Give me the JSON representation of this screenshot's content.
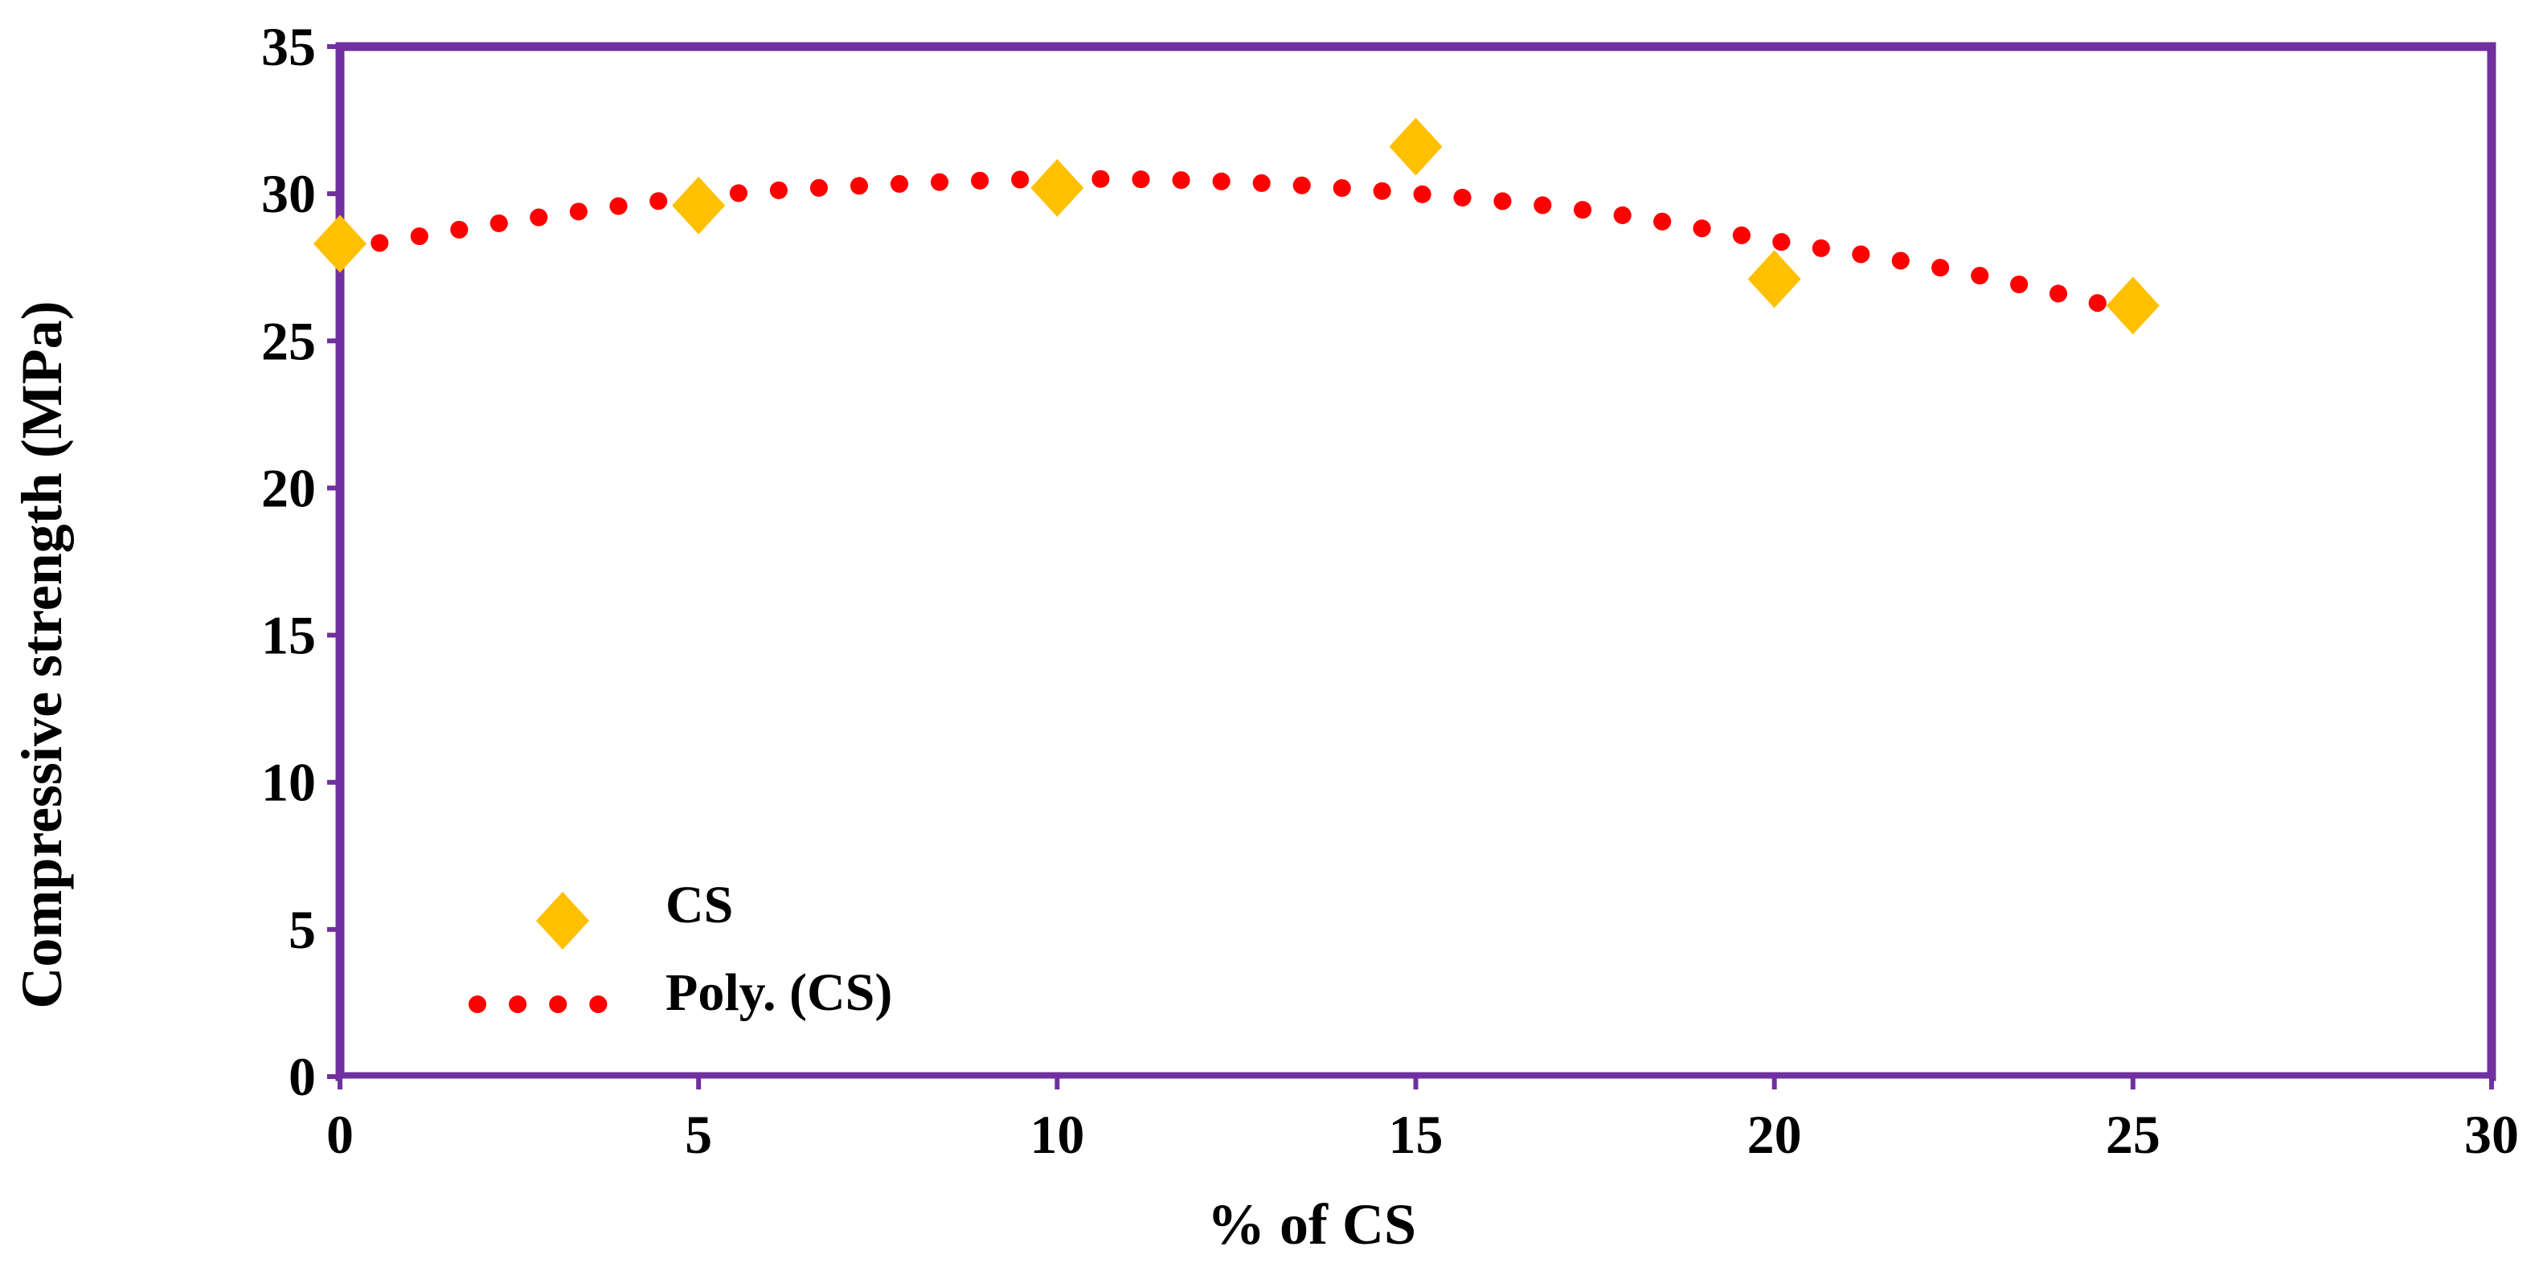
{
  "chart_data": {
    "type": "scatter",
    "title": "",
    "xlabel": "% of CS",
    "ylabel": "Compressive strength (MPa)",
    "xlim": [
      0,
      30
    ],
    "ylim": [
      0,
      35
    ],
    "xticks": [
      0,
      5,
      10,
      15,
      20,
      25,
      30
    ],
    "yticks": [
      0,
      5,
      10,
      15,
      20,
      25,
      30,
      35
    ],
    "xtick_labels": [
      "0",
      "5",
      "10",
      "15",
      "20",
      "25",
      "30"
    ],
    "ytick_labels": [
      "0",
      "5",
      "10",
      "15",
      "20",
      "25",
      "30",
      "35"
    ],
    "grid": false,
    "legend_position": "bottom-left",
    "series": [
      {
        "name": "CS",
        "kind": "markers",
        "marker": "diamond",
        "color": "#FFC000",
        "x": [
          0,
          5,
          10,
          15,
          20,
          25
        ],
        "y": [
          28.3,
          29.6,
          30.2,
          31.6,
          27.1,
          26.2
        ]
      },
      {
        "name": "Poly. (CS)",
        "kind": "trendline",
        "line_style": "dotted",
        "color": "#FF0000",
        "x": [
          0,
          2.5,
          5,
          7.5,
          10,
          12.5,
          15,
          17.5,
          20,
          22.5,
          25
        ],
        "y": [
          28.1,
          29.1,
          29.9,
          30.3,
          30.5,
          30.4,
          30.0,
          29.4,
          28.4,
          27.4,
          26.0
        ]
      }
    ],
    "frame_color": "#7030A0"
  }
}
